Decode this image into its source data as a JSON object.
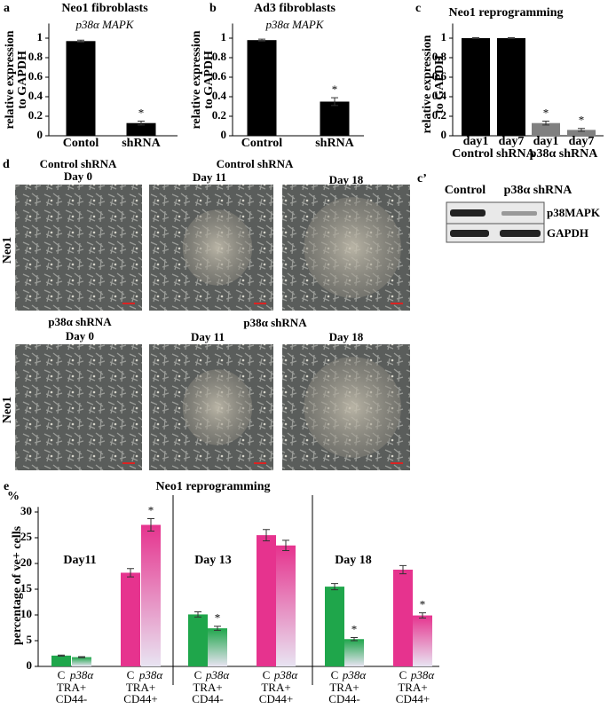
{
  "chart_data": [
    {
      "type": "bar",
      "panel": "a",
      "title": "Neo1 fibroblasts",
      "subtitle": "p38α MAPK",
      "y_label": [
        "relative expression",
        "to GAPDH"
      ],
      "categories": [
        "Contol",
        "shRNA"
      ],
      "values": [
        0.97,
        0.13
      ],
      "errors": [
        0.01,
        0.02
      ],
      "markers": [
        null,
        "*"
      ],
      "color": "#000000",
      "ylim": [
        0,
        1.15
      ],
      "yticks": [
        0,
        0.2,
        0.4,
        0.6,
        0.8,
        1
      ]
    },
    {
      "type": "bar",
      "panel": "b",
      "title": "Ad3 fibroblasts",
      "subtitle": "p38α MAPK",
      "y_label": [
        "relative expression",
        "to GAPDH"
      ],
      "categories": [
        "Control",
        "shRNA"
      ],
      "values": [
        0.98,
        0.35
      ],
      "errors": [
        0.01,
        0.04
      ],
      "markers": [
        null,
        "*"
      ],
      "color": "#000000",
      "ylim": [
        0,
        1.15
      ],
      "yticks": [
        0,
        0.2,
        0.4,
        0.6,
        0.8,
        1
      ]
    },
    {
      "type": "bar",
      "panel": "c",
      "title": "Neo1 reprogramming",
      "y_label": [
        "relative expression",
        "to GAPDH"
      ],
      "categories": [
        "day1",
        "day7",
        "day1",
        "day7"
      ],
      "group_labels": [
        "Control shRNA",
        "p38α shRNA"
      ],
      "values": [
        1,
        1,
        0.13,
        0.06
      ],
      "errors": [
        0.005,
        0.005,
        0.02,
        0.015
      ],
      "markers": [
        null,
        null,
        "*",
        "*"
      ],
      "colors": [
        "#000000",
        "#000000",
        "#808080",
        "#808080"
      ],
      "ylim": [
        0,
        1.15
      ],
      "yticks": [
        0,
        0.2,
        0.4,
        0.6,
        0.8,
        1
      ]
    },
    {
      "type": "bar",
      "panel": "e",
      "title": "Neo1 reprogramming",
      "y_unit": "%",
      "y_label": [
        "percentage of ve+ cells"
      ],
      "sections": [
        "Day11",
        "Day 13",
        "Day 18"
      ],
      "categories": [
        [
          "TRA+",
          "CD44-"
        ],
        [
          "TRA+",
          "CD44+"
        ],
        [
          "TRA+",
          "CD44-"
        ],
        [
          "TRA+",
          "CD44+"
        ],
        [
          "TRA+",
          "CD44-"
        ],
        [
          "TRA+",
          "CD44+"
        ]
      ],
      "series": [
        {
          "name": "C",
          "values": [
            2.1,
            18.2,
            10.1,
            25.5,
            15.5,
            18.8
          ],
          "errors": [
            0.1,
            0.8,
            0.5,
            1.1,
            0.6,
            0.8
          ],
          "markers": [
            null,
            null,
            null,
            null,
            null,
            null
          ]
        },
        {
          "name": "p38α",
          "values": [
            1.8,
            27.5,
            7.4,
            23.5,
            5.3,
            9.9
          ],
          "errors": [
            0.1,
            1.2,
            0.4,
            1.0,
            0.3,
            0.5
          ],
          "markers": [
            null,
            "*",
            "*",
            null,
            "*",
            "*"
          ]
        }
      ],
      "colors": [
        "#1fa64b",
        "#e6338e"
      ],
      "ylim": [
        0,
        31
      ],
      "yticks": [
        0,
        5,
        10,
        15,
        20,
        25,
        30
      ]
    }
  ],
  "micrographs": {
    "panel": "d",
    "rows": [
      {
        "label": "Neo1",
        "images": [
          {
            "title": "Control shRNA",
            "day": "Day 0"
          },
          {
            "title": "Control shRNA",
            "day": "Day 11"
          },
          {
            "day": "Day 18"
          }
        ]
      },
      {
        "label": "Neo1",
        "images": [
          {
            "title": "p38α shRNA",
            "day": "Day 0"
          },
          {
            "title": "p38α shRNA",
            "day": "Day 11"
          },
          {
            "day": "Day 18"
          }
        ]
      }
    ]
  },
  "blot": {
    "panel": "c’",
    "lanes": [
      "Control",
      "p38α shRNA"
    ],
    "bands": [
      "p38MAPK",
      "GAPDH"
    ]
  }
}
